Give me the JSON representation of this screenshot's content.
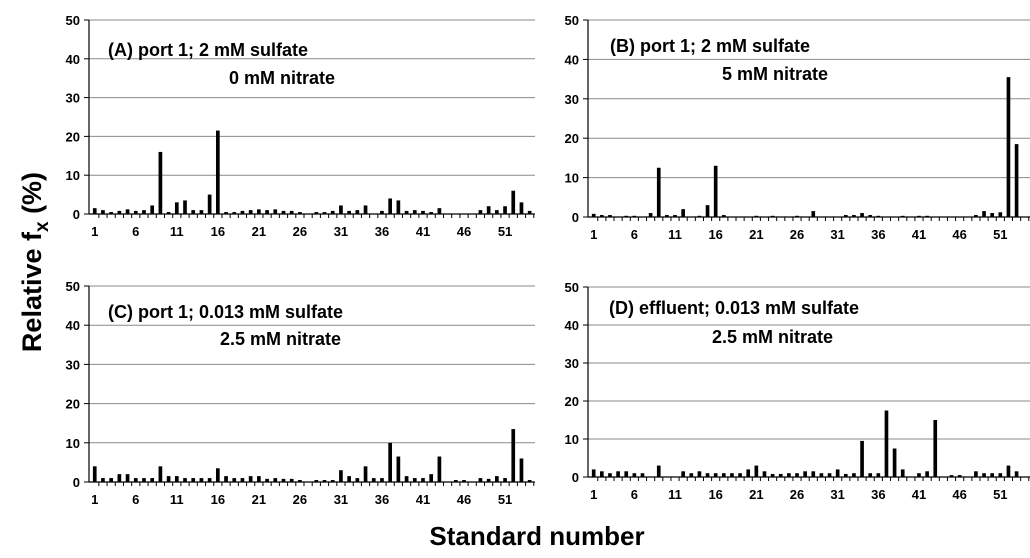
{
  "figure": {
    "ylabel_main": "Relative f",
    "ylabel_sub": "x",
    "ylabel_unit": " (%)",
    "xlabel": "Standard number"
  },
  "chart_data": [
    {
      "type": "bar",
      "title_line1": "(A) port 1; 2 mM sulfate",
      "title_line2": "0 mM nitrate",
      "ylim": [
        0,
        50
      ],
      "yticks": [
        "0",
        "10",
        "20",
        "30",
        "40",
        "50"
      ],
      "xticks": [
        "1",
        "6",
        "11",
        "16",
        "21",
        "26",
        "31",
        "36",
        "41",
        "46",
        "51"
      ],
      "x": [
        1,
        2,
        3,
        4,
        5,
        6,
        7,
        8,
        9,
        10,
        11,
        12,
        13,
        14,
        15,
        16,
        17,
        18,
        19,
        20,
        21,
        22,
        23,
        24,
        25,
        26,
        27,
        28,
        29,
        30,
        31,
        32,
        33,
        34,
        35,
        36,
        37,
        38,
        39,
        40,
        41,
        42,
        43,
        44,
        45,
        46,
        47,
        48,
        49,
        50,
        51,
        52,
        53,
        54
      ],
      "values": [
        1.5,
        1.0,
        0.5,
        0.8,
        1.2,
        0.8,
        1.0,
        2.2,
        16.0,
        0.5,
        3.0,
        3.5,
        1.0,
        1.0,
        5.0,
        21.5,
        0.5,
        0.5,
        0.8,
        1.0,
        1.2,
        1.0,
        1.2,
        0.8,
        0.8,
        0.5,
        0,
        0.5,
        0.5,
        0.8,
        2.2,
        0.8,
        1.0,
        2.2,
        0,
        0.8,
        4.0,
        3.5,
        0.8,
        1.0,
        0.8,
        0.5,
        1.5,
        0,
        0,
        0,
        0,
        1.0,
        2.0,
        1.0,
        2.0,
        6.0,
        3.0,
        0.8
      ],
      "grid": true
    },
    {
      "type": "bar",
      "title_line1": "(B) port 1; 2 mM sulfate",
      "title_line2": "5 mM nitrate",
      "ylim": [
        0,
        50
      ],
      "yticks": [
        "0",
        "10",
        "20",
        "30",
        "40",
        "50"
      ],
      "xticks": [
        "1",
        "6",
        "11",
        "16",
        "21",
        "26",
        "31",
        "36",
        "41",
        "46",
        "51"
      ],
      "x": [
        1,
        2,
        3,
        4,
        5,
        6,
        7,
        8,
        9,
        10,
        11,
        12,
        13,
        14,
        15,
        16,
        17,
        18,
        19,
        20,
        21,
        22,
        23,
        24,
        25,
        26,
        27,
        28,
        29,
        30,
        31,
        32,
        33,
        34,
        35,
        36,
        37,
        38,
        39,
        40,
        41,
        42,
        43,
        44,
        45,
        46,
        47,
        48,
        49,
        50,
        51,
        52,
        53,
        54
      ],
      "values": [
        0.8,
        0.5,
        0.5,
        0,
        0.3,
        0.3,
        0,
        1.0,
        12.5,
        0.5,
        0.5,
        2.0,
        0,
        0.3,
        3.0,
        13.0,
        0.5,
        0,
        0,
        0,
        0.3,
        0,
        0.3,
        0,
        0,
        0.3,
        0,
        1.5,
        0,
        0,
        0,
        0.5,
        0.5,
        1.0,
        0.5,
        0.3,
        0,
        0,
        0.3,
        0,
        0.3,
        0.3,
        0,
        0,
        0,
        0,
        0,
        0.5,
        1.5,
        1.0,
        1.2,
        35.5,
        18.5,
        0
      ],
      "grid": true
    },
    {
      "type": "bar",
      "title_line1": "(C) port 1; 0.013 mM sulfate",
      "title_line2": "2.5 mM nitrate",
      "ylim": [
        0,
        50
      ],
      "yticks": [
        "0",
        "10",
        "20",
        "30",
        "40",
        "50"
      ],
      "xticks": [
        "1",
        "6",
        "11",
        "16",
        "21",
        "26",
        "31",
        "36",
        "41",
        "46",
        "51"
      ],
      "x": [
        1,
        2,
        3,
        4,
        5,
        6,
        7,
        8,
        9,
        10,
        11,
        12,
        13,
        14,
        15,
        16,
        17,
        18,
        19,
        20,
        21,
        22,
        23,
        24,
        25,
        26,
        27,
        28,
        29,
        30,
        31,
        32,
        33,
        34,
        35,
        36,
        37,
        38,
        39,
        40,
        41,
        42,
        43,
        44,
        45,
        46,
        47,
        48,
        49,
        50,
        51,
        52,
        53,
        54
      ],
      "values": [
        4.0,
        1.0,
        1.0,
        2.0,
        2.0,
        1.0,
        1.0,
        1.0,
        4.0,
        1.5,
        1.5,
        1.0,
        1.0,
        1.0,
        1.0,
        3.5,
        1.5,
        1.0,
        1.0,
        1.5,
        1.5,
        0.8,
        1.0,
        0.8,
        0.8,
        0.5,
        0,
        0.5,
        0.5,
        0.5,
        3.0,
        1.5,
        1.0,
        4.0,
        1.0,
        1.0,
        10.0,
        6.5,
        1.5,
        1.0,
        1.0,
        2.0,
        6.5,
        0,
        0.5,
        0.5,
        0,
        1.0,
        0.8,
        1.5,
        1.0,
        13.5,
        6.0,
        0.5
      ],
      "grid": true
    },
    {
      "type": "bar",
      "title_line1": "(D) effluent; 0.013 mM sulfate",
      "title_line2": "2.5 mM nitrate",
      "ylim": [
        0,
        50
      ],
      "yticks": [
        "0",
        "10",
        "20",
        "30",
        "40",
        "50"
      ],
      "xticks": [
        "1",
        "6",
        "11",
        "16",
        "21",
        "26",
        "31",
        "36",
        "41",
        "46",
        "51"
      ],
      "x": [
        1,
        2,
        3,
        4,
        5,
        6,
        7,
        8,
        9,
        10,
        11,
        12,
        13,
        14,
        15,
        16,
        17,
        18,
        19,
        20,
        21,
        22,
        23,
        24,
        25,
        26,
        27,
        28,
        29,
        30,
        31,
        32,
        33,
        34,
        35,
        36,
        37,
        38,
        39,
        40,
        41,
        42,
        43,
        44,
        45,
        46,
        47,
        48,
        49,
        50,
        51,
        52,
        53,
        54
      ],
      "values": [
        2.0,
        1.5,
        1.0,
        1.5,
        1.5,
        1.0,
        1.0,
        0,
        3.0,
        0,
        0,
        1.5,
        1.0,
        1.5,
        1.0,
        1.0,
        1.0,
        1.0,
        1.0,
        2.0,
        3.0,
        1.5,
        0.8,
        0.8,
        1.0,
        1.0,
        1.5,
        1.5,
        1.0,
        1.0,
        2.0,
        0.8,
        1.0,
        9.5,
        1.0,
        1.0,
        17.5,
        7.5,
        2.0,
        0,
        1.0,
        1.5,
        15.0,
        0,
        0.5,
        0.5,
        0,
        1.5,
        1.0,
        1.0,
        1.0,
        3.0,
        1.5,
        0
      ],
      "grid": true
    }
  ]
}
